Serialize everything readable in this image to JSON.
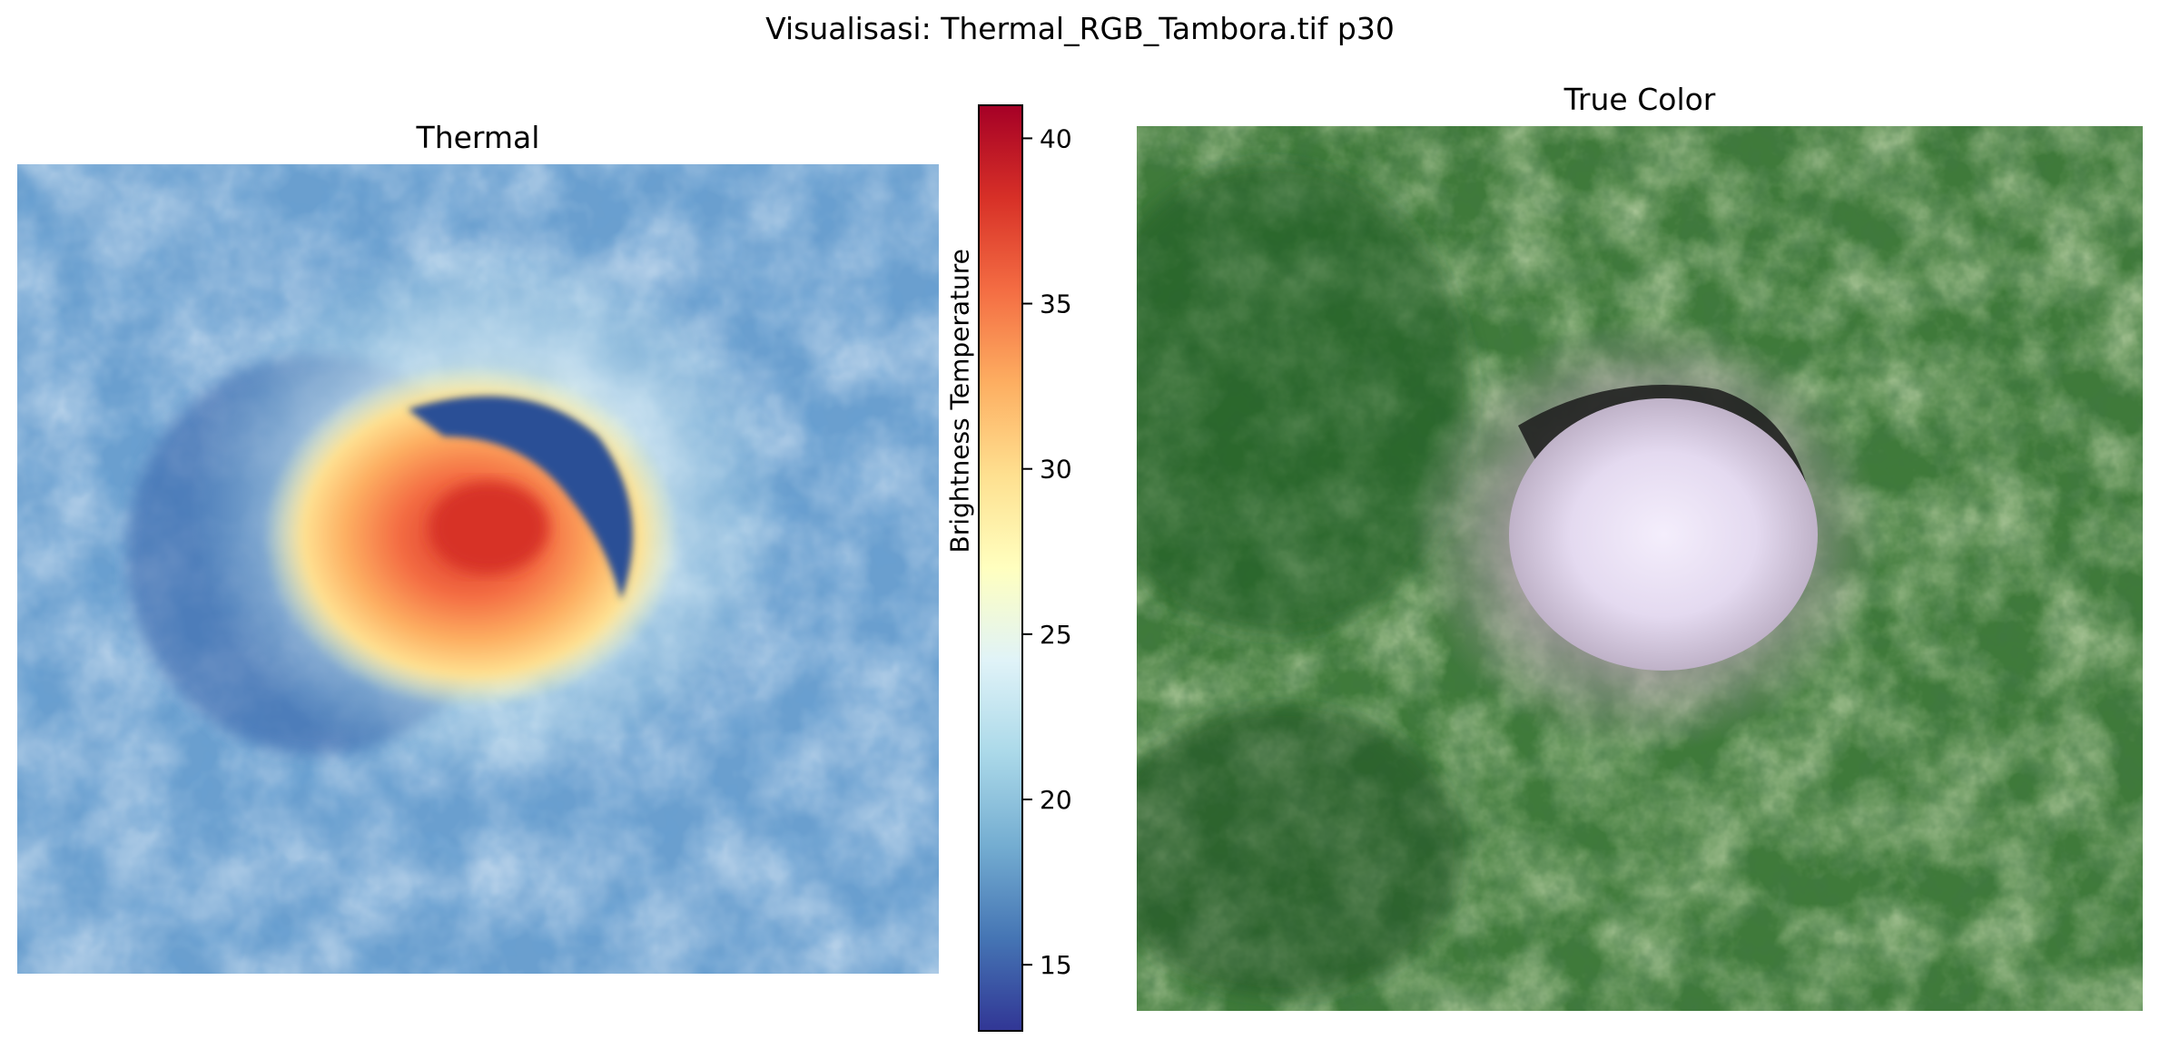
{
  "figure_title": "Visualisasi: Thermal_RGB_Tambora.tif p30",
  "panels": {
    "thermal": {
      "title": "Thermal"
    },
    "true_color": {
      "title": "True Color"
    }
  },
  "chart_data": [
    {
      "type": "heatmap",
      "title": "Thermal",
      "colormap": "RdYlBu_r",
      "colorbar": {
        "label": "Brightness Temperature",
        "vmin": 13,
        "vmax": 41,
        "ticks": [
          15,
          20,
          25,
          30,
          35,
          40
        ],
        "colors": [
          "#313695",
          "#4575b4",
          "#74add1",
          "#abd9e9",
          "#e0f3f8",
          "#ffffbf",
          "#fee090",
          "#fdae61",
          "#f46d43",
          "#d73027",
          "#a50026"
        ]
      },
      "axes_visible": false
    },
    {
      "type": "image",
      "title": "True Color",
      "axes_visible": false
    }
  ]
}
